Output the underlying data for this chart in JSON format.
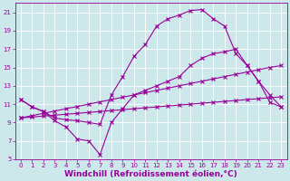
{
  "title": "",
  "xlabel": "Windchill (Refroidissement éolien,°C)",
  "bg_color": "#cce8eb",
  "grid_color": "#ffffff",
  "line_color": "#990099",
  "xlim": [
    -0.5,
    23.5
  ],
  "ylim": [
    5,
    22
  ],
  "yticks": [
    5,
    7,
    9,
    11,
    13,
    15,
    17,
    19,
    21
  ],
  "xticks": [
    0,
    1,
    2,
    3,
    4,
    5,
    6,
    7,
    8,
    9,
    10,
    11,
    12,
    13,
    14,
    15,
    16,
    17,
    18,
    19,
    20,
    21,
    22,
    23
  ],
  "line1_x": [
    0,
    1,
    2,
    3,
    4,
    5,
    6,
    7,
    8,
    9,
    10,
    11,
    12,
    13,
    14,
    15,
    16,
    17,
    18,
    19,
    20,
    21,
    22,
    23
  ],
  "line1_y": [
    11.5,
    10.7,
    10.2,
    9.5,
    9.3,
    9.2,
    9.0,
    8.8,
    12.0,
    14.0,
    16.2,
    17.5,
    19.5,
    20.3,
    20.7,
    21.2,
    21.3,
    20.3,
    19.5,
    16.5,
    15.2,
    13.5,
    11.2,
    10.7
  ],
  "line2_x": [
    0,
    1,
    2,
    3,
    4,
    5,
    6,
    7,
    8,
    9,
    10,
    11,
    12,
    13,
    14,
    15,
    16,
    17,
    18,
    19,
    20,
    21,
    22,
    23
  ],
  "line2_y": [
    11.5,
    10.7,
    10.2,
    9.2,
    8.5,
    7.2,
    7.0,
    5.5,
    9.0,
    10.5,
    12.0,
    12.5,
    13.0,
    13.5,
    14.0,
    15.2,
    16.0,
    16.5,
    16.7,
    17.0,
    15.2,
    13.5,
    12.0,
    10.7
  ],
  "line3_x": [
    0,
    1,
    2,
    3,
    4,
    5,
    6,
    7,
    8,
    9,
    10,
    11,
    12,
    13,
    14,
    15,
    16,
    17,
    18,
    19,
    20,
    21,
    22,
    23
  ],
  "line3_y": [
    9.5,
    9.6,
    9.7,
    9.8,
    9.9,
    10.0,
    10.1,
    10.2,
    10.3,
    10.4,
    10.5,
    10.6,
    10.7,
    10.8,
    10.9,
    11.0,
    11.1,
    11.2,
    11.3,
    11.4,
    11.5,
    11.6,
    11.7,
    11.8
  ],
  "line4_x": [
    0,
    1,
    2,
    3,
    4,
    5,
    6,
    7,
    8,
    9,
    10,
    11,
    12,
    13,
    14,
    15,
    16,
    17,
    18,
    19,
    20,
    21,
    22,
    23
  ],
  "line4_y": [
    9.5,
    9.75,
    10.0,
    10.25,
    10.5,
    10.75,
    11.0,
    11.25,
    11.5,
    11.75,
    12.0,
    12.25,
    12.5,
    12.75,
    13.0,
    13.25,
    13.5,
    13.75,
    14.0,
    14.25,
    14.5,
    14.75,
    15.0,
    15.2
  ],
  "marker": "x",
  "markersize": 2.5,
  "linewidth": 0.8,
  "tick_fontsize": 5,
  "xlabel_fontsize": 6.5
}
